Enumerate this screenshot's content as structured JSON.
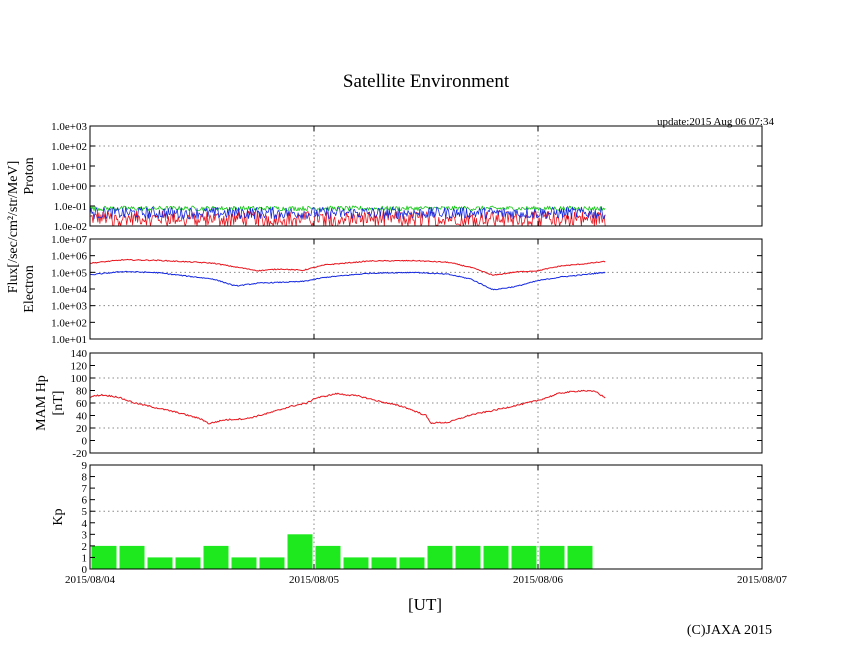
{
  "chart_data": {
    "type": "line",
    "title": "Satellite Environment",
    "update_text": "update:2015 Aug 06 07:34",
    "copyright": "(C)JAXA 2015",
    "xlabel": "[UT]",
    "flux_label": "Flux[/sec/cm²/str/MeV]",
    "x_range": [
      0,
      3
    ],
    "x_ticks": [
      {
        "x": 0,
        "label": "2015/08/04"
      },
      {
        "x": 1,
        "label": "2015/08/05"
      },
      {
        "x": 2,
        "label": "2015/08/06"
      },
      {
        "x": 3,
        "label": "2015/08/07"
      }
    ],
    "data_end": 2.3,
    "panels": [
      {
        "name": "proton",
        "ylabel": "Proton",
        "scale": "log",
        "ylim_exp": [
          -2,
          3
        ],
        "tick_labels": [
          "1.0e-02",
          "1.0e-01",
          "1.0e+00",
          "1.0e+01",
          "1.0e+02",
          "1.0e+03"
        ],
        "series": [
          {
            "name": "proton-red",
            "color": "#e8141c",
            "base": -1.6,
            "noise": 0.35
          },
          {
            "name": "proton-green",
            "color": "#14c814",
            "base": -1.12,
            "noise": 0.12
          },
          {
            "name": "proton-blue",
            "color": "#1428e0",
            "base": -1.35,
            "noise": 0.3
          }
        ]
      },
      {
        "name": "electron",
        "ylabel": "Electron",
        "scale": "log",
        "ylim_exp": [
          1,
          7
        ],
        "tick_labels": [
          "1.0e+01",
          "1.0e+02",
          "1.0e+03",
          "1.0e+04",
          "1.0e+05",
          "1.0e+06",
          "1.0e+07"
        ],
        "series": [
          {
            "name": "electron-red",
            "color": "#e8141c",
            "x": [
              0,
              0.15,
              0.3,
              0.45,
              0.55,
              0.65,
              0.75,
              0.85,
              0.95,
              1.05,
              1.25,
              1.45,
              1.6,
              1.7,
              1.8,
              1.9,
              2.0,
              2.1,
              2.2,
              2.3
            ],
            "values": [
              5.55,
              5.75,
              5.72,
              5.62,
              5.55,
              5.32,
              5.1,
              5.2,
              5.12,
              5.45,
              5.68,
              5.7,
              5.6,
              5.3,
              4.82,
              5.02,
              5.1,
              5.38,
              5.5,
              5.65
            ]
          },
          {
            "name": "electron-blue",
            "color": "#1428e0",
            "x": [
              0,
              0.15,
              0.3,
              0.45,
              0.55,
              0.65,
              0.75,
              0.85,
              0.95,
              1.05,
              1.25,
              1.45,
              1.6,
              1.7,
              1.8,
              1.9,
              2.0,
              2.1,
              2.2,
              2.3
            ],
            "values": [
              4.85,
              5.05,
              4.98,
              4.75,
              4.6,
              4.18,
              4.35,
              4.4,
              4.45,
              4.7,
              4.95,
              5.0,
              4.88,
              4.6,
              3.95,
              4.15,
              4.5,
              4.72,
              4.85,
              5.0
            ]
          }
        ]
      },
      {
        "name": "mam",
        "ylabel": "MAM Hp",
        "ylabel2": "[nT]",
        "scale": "linear",
        "ylim": [
          -20,
          140
        ],
        "y_ticks": [
          -20,
          0,
          20,
          40,
          60,
          80,
          100,
          120,
          140
        ],
        "series": [
          {
            "name": "mam-red",
            "color": "#e8141c",
            "x": [
              0,
              0.05,
              0.12,
              0.2,
              0.3,
              0.4,
              0.5,
              0.53,
              0.6,
              0.7,
              0.8,
              0.9,
              0.97,
              1.0,
              1.1,
              1.2,
              1.3,
              1.4,
              1.5,
              1.52,
              1.6,
              1.7,
              1.8,
              1.9,
              2.0,
              2.1,
              2.2,
              2.26,
              2.3
            ],
            "values": [
              70,
              73,
              70,
              60,
              52,
              44,
              34,
              27,
              33,
              35,
              44,
              55,
              60,
              67,
              75,
              71,
              62,
              54,
              40,
              28,
              29,
              41,
              48,
              56,
              64,
              76,
              80,
              78,
              68
            ]
          }
        ]
      },
      {
        "name": "kp",
        "ylabel": "Kp",
        "scale": "linear",
        "ylim": [
          0,
          9
        ],
        "y_ticks": [
          0,
          1,
          2,
          3,
          4,
          5,
          6,
          7,
          8,
          9
        ],
        "bar_color": "#1ee81e",
        "bars": [
          2,
          2,
          1,
          1,
          2,
          1,
          1,
          3,
          2,
          1,
          1,
          1,
          2,
          2,
          2,
          2,
          2,
          2
        ]
      }
    ]
  }
}
